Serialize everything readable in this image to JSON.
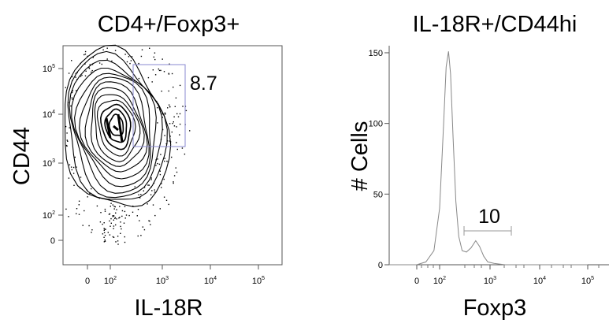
{
  "panels": [
    {
      "title": "CD4+/Foxp3+",
      "xlabel": "IL-18R",
      "ylabel": "CD44",
      "x_ticks": [
        {
          "base": "0",
          "exp": ""
        },
        {
          "base": "10",
          "exp": "2"
        },
        {
          "base": "10",
          "exp": "3"
        },
        {
          "base": "10",
          "exp": "4"
        },
        {
          "base": "10",
          "exp": "5"
        }
      ],
      "y_ticks": [
        {
          "base": "0",
          "exp": ""
        },
        {
          "base": "10",
          "exp": "2"
        },
        {
          "base": "10",
          "exp": "3"
        },
        {
          "base": "10",
          "exp": "4"
        },
        {
          "base": "10",
          "exp": "5"
        }
      ],
      "gate_label": "8.7"
    },
    {
      "title": "IL-18R+/CD44hi",
      "xlabel": "Foxp3",
      "ylabel": "# Cells",
      "x_ticks": [
        {
          "base": "0",
          "exp": ""
        },
        {
          "base": "10",
          "exp": "2"
        },
        {
          "base": "10",
          "exp": "3"
        },
        {
          "base": "10",
          "exp": "4"
        },
        {
          "base": "10",
          "exp": "5"
        }
      ],
      "y_ticks": [
        {
          "base": "0",
          "exp": ""
        },
        {
          "base": "50",
          "exp": ""
        },
        {
          "base": "100",
          "exp": ""
        },
        {
          "base": "150",
          "exp": ""
        }
      ],
      "gate_label": "10"
    }
  ],
  "chart_data": [
    {
      "type": "contour",
      "title": "CD4+/Foxp3+",
      "xlabel": "IL-18R",
      "ylabel": "CD44",
      "x_scale": "biexponential",
      "y_scale": "biexponential",
      "x_ticks": [
        "0",
        "10^2",
        "10^3",
        "10^4",
        "10^5"
      ],
      "y_ticks": [
        "0",
        "10^2",
        "10^3",
        "10^4",
        "10^5"
      ],
      "population_center": {
        "x": 140,
        "y": 4000
      },
      "gate": {
        "x_range": [
          250,
          3000
        ],
        "y_range": [
          2000,
          100000
        ],
        "percent": 8.7
      }
    },
    {
      "type": "histogram",
      "title": "IL-18R+/CD44hi",
      "xlabel": "Foxp3",
      "ylabel": "# Cells",
      "x_scale": "biexponential",
      "ylim": [
        0,
        155
      ],
      "y_ticks": [
        0,
        50,
        100,
        150
      ],
      "x_ticks": [
        "0",
        "10^2",
        "10^3",
        "10^4",
        "10^5"
      ],
      "curve": [
        {
          "x": 0,
          "y": 0
        },
        {
          "x": 40,
          "y": 2
        },
        {
          "x": 75,
          "y": 10
        },
        {
          "x": 100,
          "y": 40
        },
        {
          "x": 120,
          "y": 100
        },
        {
          "x": 135,
          "y": 140
        },
        {
          "x": 150,
          "y": 151
        },
        {
          "x": 165,
          "y": 135
        },
        {
          "x": 185,
          "y": 90
        },
        {
          "x": 210,
          "y": 45
        },
        {
          "x": 240,
          "y": 20
        },
        {
          "x": 280,
          "y": 10
        },
        {
          "x": 340,
          "y": 9
        },
        {
          "x": 420,
          "y": 12
        },
        {
          "x": 520,
          "y": 17
        },
        {
          "x": 620,
          "y": 13
        },
        {
          "x": 750,
          "y": 6
        },
        {
          "x": 900,
          "y": 2
        },
        {
          "x": 1200,
          "y": 1
        },
        {
          "x": 2000,
          "y": 0
        },
        {
          "x": 100000,
          "y": 0
        }
      ],
      "gate": {
        "x_range": [
          300,
          2500
        ],
        "percent": 10
      }
    }
  ]
}
